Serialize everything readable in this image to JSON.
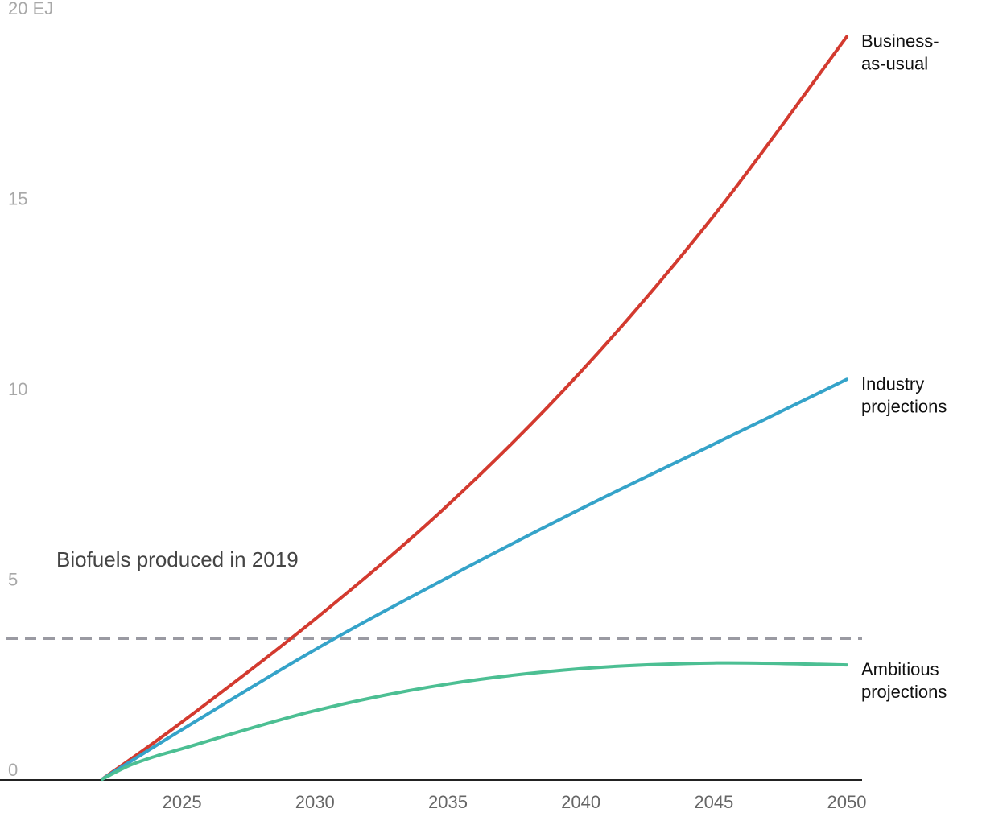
{
  "chart_data": {
    "type": "line",
    "title": "",
    "xlabel": "",
    "ylabel": "",
    "xlim": [
      2022,
      2050
    ],
    "ylim": [
      0,
      20
    ],
    "y_ticks": [
      {
        "value": 0,
        "label": "0"
      },
      {
        "value": 5,
        "label": "5"
      },
      {
        "value": 10,
        "label": "10"
      },
      {
        "value": 15,
        "label": "15"
      },
      {
        "value": 20,
        "label": "20 EJ"
      }
    ],
    "x_ticks": [
      {
        "value": 2025,
        "label": "2025"
      },
      {
        "value": 2030,
        "label": "2030"
      },
      {
        "value": 2035,
        "label": "2035"
      },
      {
        "value": 2040,
        "label": "2040"
      },
      {
        "value": 2045,
        "label": "2045"
      },
      {
        "value": 2050,
        "label": "2050"
      }
    ],
    "grid": false,
    "legend": "direct labels at line ends",
    "reference_line": {
      "value": 3.7,
      "label": "Biofuels produced in 2019",
      "color": "#9a9aa2"
    },
    "series": [
      {
        "name": "Business-as-usual",
        "label_lines": [
          "Business-",
          "as-usual"
        ],
        "color": "#d33a2f",
        "x": [
          2022,
          2025,
          2030,
          2035,
          2040,
          2045,
          2050
        ],
        "values": [
          0,
          1.5,
          4.2,
          7.2,
          10.7,
          14.8,
          19.5
        ]
      },
      {
        "name": "Industry projections",
        "label_lines": [
          "Industry",
          "projections"
        ],
        "color": "#35a3c9",
        "x": [
          2022,
          2025,
          2030,
          2035,
          2040,
          2045,
          2050
        ],
        "values": [
          0,
          1.3,
          3.4,
          5.3,
          7.1,
          8.8,
          10.5
        ]
      },
      {
        "name": "Ambitious projections",
        "label_lines": [
          "Ambitious",
          "projections"
        ],
        "color": "#4cbf93",
        "x": [
          2022,
          2023,
          2024,
          2025,
          2030,
          2035,
          2040,
          2045,
          2050
        ],
        "values": [
          0,
          0.35,
          0.6,
          0.8,
          1.8,
          2.5,
          2.9,
          3.05,
          3.0
        ]
      }
    ],
    "colors": {
      "tick_y": "#a8a8a8",
      "tick_x": "#666666",
      "axis": "#222222"
    }
  }
}
